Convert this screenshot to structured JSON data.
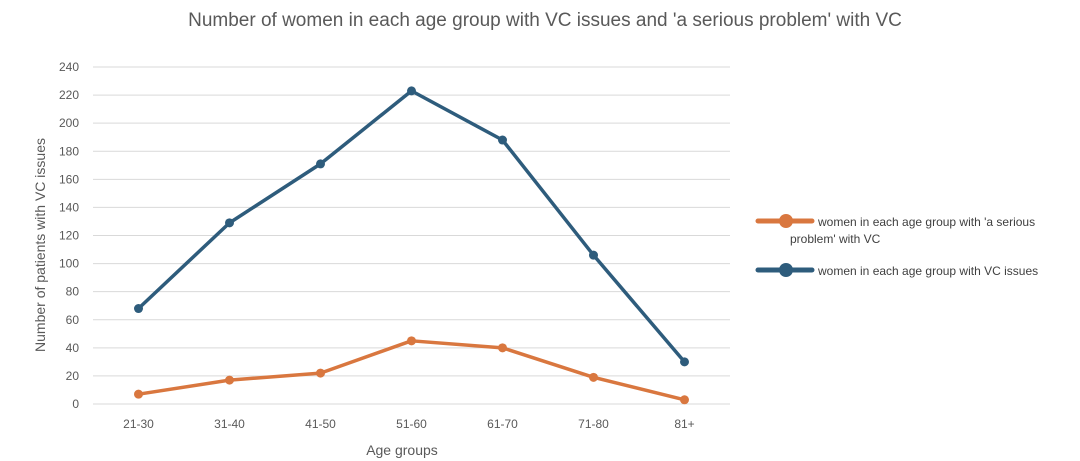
{
  "chart_data": {
    "type": "line",
    "title": "Number of women in each age group with VC issues and 'a serious problem' with VC",
    "xlabel": "Age groups",
    "ylabel": "Number of patients with VC issues",
    "categories": [
      "21-30",
      "31-40",
      "41-50",
      "51-60",
      "61-70",
      "71-80",
      "81+"
    ],
    "ylim": [
      0,
      240
    ],
    "yticks": [
      0,
      20,
      40,
      60,
      80,
      100,
      120,
      140,
      160,
      180,
      200,
      220,
      240
    ],
    "grid": true,
    "legend_position": "right",
    "series": [
      {
        "name_lines": [
          "women in each age group with 'a serious",
          "problem' with VC"
        ],
        "color": "#D9773F",
        "values": [
          7,
          17,
          22,
          45,
          40,
          19,
          3
        ]
      },
      {
        "name_lines": [
          "women in each age group with VC issues"
        ],
        "color": "#2E5C7C",
        "values": [
          68,
          129,
          171,
          223,
          188,
          106,
          30
        ]
      }
    ]
  }
}
